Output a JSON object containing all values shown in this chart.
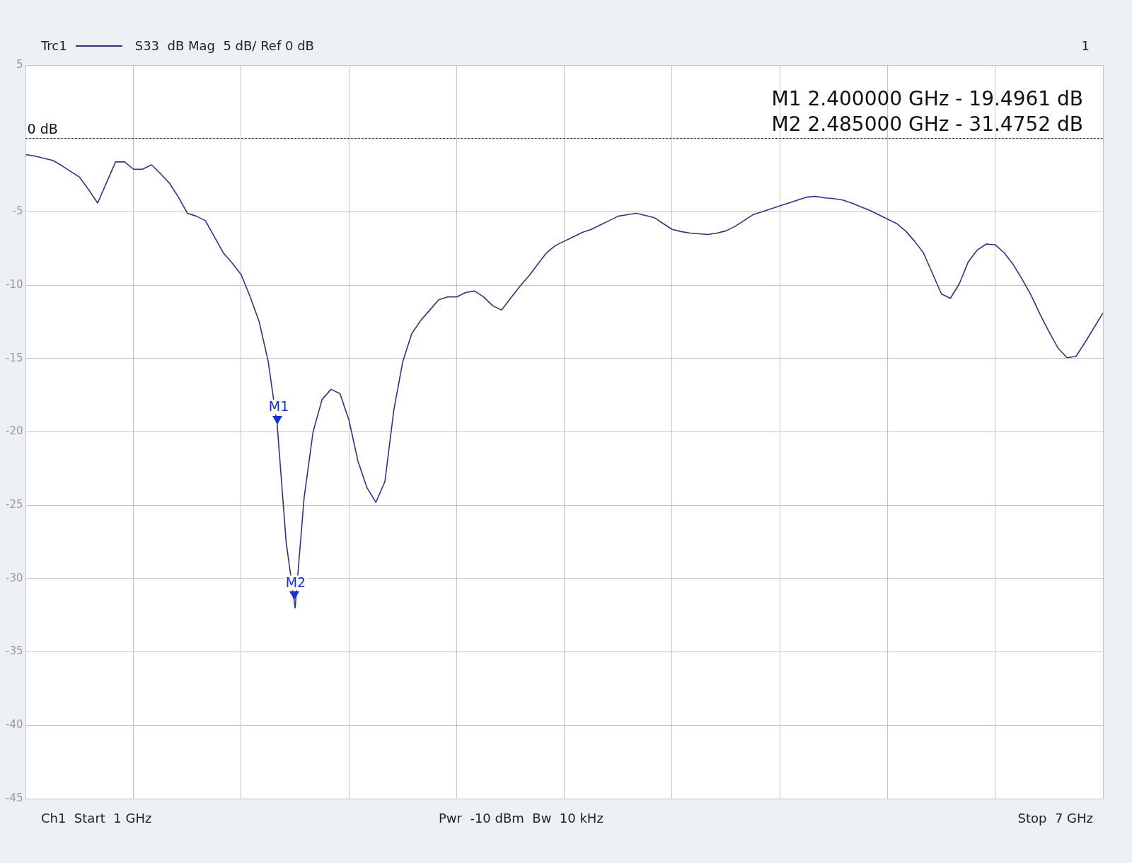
{
  "chart_data": {
    "type": "line",
    "ylim": [
      -45,
      5
    ],
    "categories": [
      null,
      null,
      null,
      null,
      null,
      null,
      null,
      null,
      null,
      null,
      null,
      null,
      null,
      null,
      null,
      null,
      null,
      null,
      null,
      null,
      null,
      null,
      null,
      null,
      null,
      null,
      null,
      null,
      null,
      null,
      null,
      null,
      null,
      null,
      null,
      null,
      null,
      null,
      null,
      null,
      null,
      null,
      null,
      null,
      null,
      null,
      null,
      null,
      null,
      null,
      null,
      null,
      null,
      null,
      null,
      null,
      null,
      null,
      null,
      null,
      null,
      null,
      null,
      null,
      null,
      null,
      null,
      null,
      null,
      null,
      null,
      null,
      null,
      null,
      null,
      null,
      null,
      null,
      null,
      null,
      null,
      null,
      null,
      null,
      null,
      null,
      null,
      null,
      null,
      null,
      null,
      null,
      null,
      null,
      null,
      null,
      null,
      null,
      null,
      null,
      null,
      null,
      null,
      null,
      null,
      null,
      null,
      null,
      null,
      null,
      null,
      null,
      null,
      null,
      null,
      null,
      null,
      null,
      null,
      null,
      null
    ],
    "yticks": [
      5,
      {
        "value": 0,
        "label": null
      },
      -5,
      -10,
      -15,
      -20,
      -25,
      -30,
      -35,
      -40,
      -45
    ],
    "tick_labels": "y",
    "grid": true,
    "legend": "top left",
    "marker": "none",
    "line_style": "solid",
    "series": [
      {
        "name": "Trc1",
        "color": "#33337f",
        "values": [
          -1.1,
          -1.2,
          -1.35,
          -1.5,
          -1.85,
          -2.25,
          -2.65,
          -3.5,
          -4.4,
          -3.0,
          -1.6,
          -1.6,
          -2.1,
          -2.1,
          -1.8,
          -2.4,
          -3.05,
          -4.0,
          -5.1,
          -5.3,
          -5.6,
          -6.7,
          -7.8,
          -8.5,
          -9.3,
          -10.8,
          -12.5,
          -15.2,
          -19.5,
          -27.5,
          -32.0,
          -24.5,
          -20.0,
          -17.8,
          -17.1,
          -17.4,
          -19.2,
          -22.0,
          -23.8,
          -24.8,
          -23.4,
          -18.5,
          -15.2,
          -13.3,
          -12.4,
          -11.7,
          -11.0,
          -10.8,
          -10.8,
          -10.5,
          -10.4,
          -10.8,
          -11.4,
          -11.7,
          -10.9,
          -10.1,
          -9.4,
          -8.6,
          -7.8,
          -7.3,
          -7.0,
          -6.7,
          -6.4,
          -6.2,
          -5.9,
          -5.6,
          -5.3,
          -5.2,
          -5.1,
          -5.25,
          -5.4,
          -5.8,
          -6.2,
          -6.35,
          -6.45,
          -6.5,
          -6.55,
          -6.45,
          -6.3,
          -6.0,
          -5.6,
          -5.2,
          -5.0,
          -4.8,
          -4.6,
          -4.4,
          -4.2,
          -4.0,
          -3.95,
          -4.05,
          -4.1,
          -4.2,
          -4.4,
          -4.65,
          -4.9,
          -5.2,
          -5.5,
          -5.8,
          -6.3,
          -7.0,
          -7.8,
          -9.2,
          -10.6,
          -10.9,
          -9.9,
          -8.4,
          -7.6,
          -7.2,
          -7.25,
          -7.8,
          -8.6,
          -9.6,
          -10.7,
          -12.0,
          -13.2,
          -14.3,
          -14.95,
          -14.85,
          -13.9,
          -12.9,
          -11.9
        ]
      }
    ],
    "ref_lines": [
      {
        "axis": "y",
        "value": 0,
        "label": "0 dB",
        "line_style": "dotted",
        "color": "#000000"
      }
    ],
    "annotations": [
      "S33  dB Mag  5 dB/ Ref 0 dB",
      "1",
      "M1 2.400000 GHz - 19.4961 dB",
      "M2 2.485000 GHz - 31.4752 dB",
      "Ch1  Start  1 GHz",
      "Pwr  -10 dBm  Bw  10 kHz",
      "Stop  7 GHz",
      {
        "text": "M1",
        "y": -19.4961
      },
      {
        "text": "M2",
        "y": -31.4752
      }
    ]
  }
}
